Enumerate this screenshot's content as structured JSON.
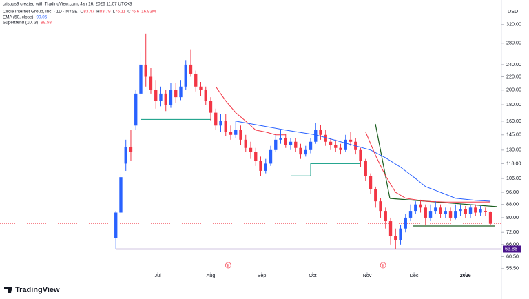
{
  "header": {
    "credit": "crispus9 created with TradingView.com, Jan 16, 2026 11:07 UTC+3",
    "symbol": "Circle Internet Group, Inc. · 1D · NYSE",
    "ohlc_labels": [
      "O",
      "H",
      "L",
      "C"
    ],
    "volume": "16.93M",
    "ema_label": "EMA (50, close)",
    "supertrend_label": "Supertrend (10, 3)",
    "currency": "USD",
    "brand": "TradingView"
  },
  "chart_data": {
    "type": "candlestick",
    "log_scale": true,
    "ylim": [
      54.1,
      382
    ],
    "xlim": [
      -23.2,
      77.2
    ],
    "yticks": [
      {
        "value": 55.5,
        "label": "55.50"
      },
      {
        "value": 60.5,
        "label": "60.50"
      },
      {
        "value": 66,
        "label": "66.00"
      },
      {
        "value": 72,
        "label": "72.00"
      },
      {
        "value": 80,
        "label": "80.00"
      },
      {
        "value": 88,
        "label": "88.00"
      },
      {
        "value": 96,
        "label": "96.00"
      },
      {
        "value": 106,
        "label": "106.00"
      },
      {
        "value": 118,
        "label": "118.00"
      },
      {
        "value": 130,
        "label": "130.00"
      },
      {
        "value": 145,
        "label": "145.00"
      },
      {
        "value": 160,
        "label": "160.00"
      },
      {
        "value": 180,
        "label": "180.00"
      },
      {
        "value": 200,
        "label": "200.00"
      },
      {
        "value": 220,
        "label": "220.00"
      },
      {
        "value": 240,
        "label": "240.00"
      },
      {
        "value": 280,
        "label": "280.00"
      },
      {
        "value": 320,
        "label": "320.00"
      }
    ],
    "xticks": [
      {
        "value": 8.4,
        "label": "Jul"
      },
      {
        "value": 19,
        "label": "Aug"
      },
      {
        "value": 29.2,
        "label": "Sep"
      },
      {
        "value": 39.4,
        "label": "Oct"
      },
      {
        "value": 50.3,
        "label": "Nov"
      },
      {
        "value": 59.7,
        "label": "Dec"
      },
      {
        "value": 70,
        "label": "2026"
      }
    ],
    "up_color": "#2962ff",
    "down_color": "#f23645",
    "candles": {
      "open": [
        69,
        83,
        118,
        133,
        155,
        195,
        240,
        220,
        200,
        185,
        195,
        180,
        200,
        190,
        205,
        240,
        225,
        205,
        200,
        185,
        170,
        155,
        160,
        148,
        145,
        150,
        140,
        132,
        128,
        120,
        112,
        118,
        130,
        140,
        142,
        135,
        138,
        132,
        126,
        130,
        138,
        150,
        145,
        138,
        135,
        132,
        130,
        140,
        138,
        130,
        120,
        108,
        98,
        90,
        84,
        78,
        70,
        68,
        74,
        80,
        84,
        88,
        86,
        80,
        84,
        86,
        82,
        84,
        80,
        84,
        85,
        82,
        86,
        83,
        84,
        83.47
      ],
      "high": [
        84,
        110,
        140,
        150,
        200,
        262,
        300,
        235,
        215,
        205,
        200,
        210,
        210,
        215,
        248,
        268,
        230,
        212,
        205,
        190,
        175,
        168,
        168,
        155,
        160,
        155,
        145,
        138,
        132,
        124,
        122,
        134,
        145,
        150,
        146,
        142,
        142,
        136,
        134,
        142,
        158,
        156,
        150,
        142,
        140,
        136,
        145,
        148,
        142,
        132,
        122,
        110,
        100,
        92,
        86,
        80,
        74,
        76,
        82,
        88,
        90,
        91,
        88,
        88,
        90,
        88,
        86,
        86,
        88,
        88,
        87,
        88,
        88,
        87,
        86,
        83.79
      ],
      "low": [
        64,
        82,
        112,
        120,
        150,
        190,
        205,
        195,
        175,
        178,
        172,
        176,
        182,
        186,
        200,
        220,
        198,
        192,
        180,
        160,
        150,
        148,
        144,
        140,
        142,
        135,
        128,
        122,
        116,
        108,
        110,
        116,
        128,
        136,
        132,
        130,
        128,
        122,
        124,
        127,
        136,
        140,
        134,
        130,
        128,
        126,
        128,
        134,
        126,
        115,
        104,
        95,
        86,
        80,
        74,
        66,
        64,
        66,
        72,
        78,
        82,
        83,
        76,
        78,
        82,
        80,
        80,
        78,
        79,
        81,
        80,
        80,
        81,
        81,
        81,
        76.11
      ],
      "close": [
        83,
        107,
        133,
        128,
        195,
        240,
        220,
        200,
        185,
        195,
        180,
        200,
        190,
        205,
        240,
        225,
        205,
        200,
        185,
        170,
        155,
        160,
        148,
        145,
        150,
        140,
        132,
        128,
        120,
        112,
        118,
        130,
        140,
        142,
        135,
        138,
        132,
        126,
        130,
        138,
        150,
        145,
        138,
        135,
        132,
        130,
        140,
        138,
        130,
        120,
        108,
        98,
        90,
        84,
        78,
        70,
        68,
        74,
        80,
        84,
        88,
        86,
        80,
        84,
        86,
        82,
        84,
        80,
        84,
        85,
        82,
        86,
        83,
        85,
        83.5,
        76.6
      ]
    },
    "ema": {
      "color": "#2962ff",
      "x": [
        24,
        28,
        34,
        40,
        45,
        51,
        54,
        57,
        60,
        62,
        65,
        68,
        72,
        75
      ],
      "values": [
        160,
        156,
        150,
        145,
        138,
        130,
        123,
        115,
        106,
        100,
        96,
        92,
        90.6,
        90.06
      ]
    },
    "supertrend_up": [
      {
        "color": "#089981",
        "x": [
          5,
          19
        ],
        "values": [
          162,
          162
        ]
      },
      {
        "color": "#089981",
        "x": [
          35,
          39,
          39,
          49
        ],
        "values": [
          108,
          108,
          118,
          118
        ]
      }
    ],
    "supertrend_down": [
      {
        "color": "#f23645",
        "x": [
          20,
          22,
          24,
          26,
          28,
          30,
          32,
          34
        ],
        "values": [
          205,
          185,
          170,
          160,
          150,
          148,
          145,
          145
        ]
      },
      {
        "color": "#f23645",
        "x": [
          50,
          52,
          54,
          56,
          58,
          62,
          66,
          70,
          75
        ],
        "values": [
          148,
          125,
          108,
          96,
          92,
          90,
          89.5,
          89.5,
          89.58
        ]
      }
    ],
    "support_line": {
      "value": 63.86,
      "color": "#4a148c"
    },
    "events": [
      {
        "label": "E",
        "x": 22.5
      },
      {
        "label": "E",
        "x": 53.5
      }
    ]
  }
}
